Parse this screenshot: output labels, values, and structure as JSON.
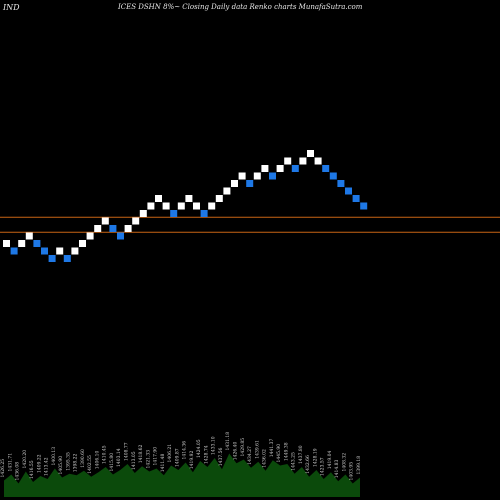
{
  "header": {
    "left": "IND",
    "center": "ICES DSHN  8%~  Closing Daily data  Renko  charts MunafaSutra.com"
  },
  "chart_data": {
    "type": "renko",
    "title": "ICES DSHN  8%~  Closing Daily data  Renko  charts MunafaSutra.com",
    "brick_size": 1,
    "reference_lines": [
      {
        "value": 20.5,
        "color": "#c86414"
      },
      {
        "value": 18.5,
        "color": "#c86414"
      }
    ],
    "bricks": [
      {
        "dir": "up",
        "level": 17
      },
      {
        "dir": "down",
        "level": 16
      },
      {
        "dir": "up",
        "level": 17
      },
      {
        "dir": "up",
        "level": 18
      },
      {
        "dir": "down",
        "level": 17
      },
      {
        "dir": "down",
        "level": 16
      },
      {
        "dir": "down",
        "level": 15
      },
      {
        "dir": "up",
        "level": 16
      },
      {
        "dir": "down",
        "level": 15
      },
      {
        "dir": "up",
        "level": 16
      },
      {
        "dir": "up",
        "level": 17
      },
      {
        "dir": "up",
        "level": 18
      },
      {
        "dir": "up",
        "level": 19
      },
      {
        "dir": "up",
        "level": 20
      },
      {
        "dir": "down",
        "level": 19
      },
      {
        "dir": "down",
        "level": 18
      },
      {
        "dir": "up",
        "level": 19
      },
      {
        "dir": "up",
        "level": 20
      },
      {
        "dir": "up",
        "level": 21
      },
      {
        "dir": "up",
        "level": 22
      },
      {
        "dir": "up",
        "level": 23
      },
      {
        "dir": "up",
        "level": 22
      },
      {
        "dir": "down",
        "level": 21
      },
      {
        "dir": "up",
        "level": 22
      },
      {
        "dir": "up",
        "level": 23
      },
      {
        "dir": "up",
        "level": 22
      },
      {
        "dir": "down",
        "level": 21
      },
      {
        "dir": "up",
        "level": 22
      },
      {
        "dir": "up",
        "level": 23
      },
      {
        "dir": "up",
        "level": 24
      },
      {
        "dir": "up",
        "level": 25
      },
      {
        "dir": "up",
        "level": 26
      },
      {
        "dir": "down",
        "level": 25
      },
      {
        "dir": "up",
        "level": 26
      },
      {
        "dir": "up",
        "level": 27
      },
      {
        "dir": "down",
        "level": 26
      },
      {
        "dir": "up",
        "level": 27
      },
      {
        "dir": "up",
        "level": 28
      },
      {
        "dir": "down",
        "level": 27
      },
      {
        "dir": "up",
        "level": 28
      },
      {
        "dir": "up",
        "level": 29
      },
      {
        "dir": "up",
        "level": 28
      },
      {
        "dir": "down",
        "level": 27
      },
      {
        "dir": "down",
        "level": 26
      },
      {
        "dir": "down",
        "level": 25
      },
      {
        "dir": "down",
        "level": 24
      },
      {
        "dir": "down",
        "level": 23
      },
      {
        "dir": "down",
        "level": 22
      }
    ],
    "volume_labels": [
      "1426.25",
      "1431.71",
      "1436.08",
      "1420.20",
      "1416.55",
      "1409.22",
      "1413.42",
      "1400.13",
      "1405.90",
      "1395.35",
      "1398.22",
      "1390.60",
      "1402.55",
      "1406.10",
      "1410.45",
      "1415.80",
      "1403.14",
      "1408.77",
      "1413.05",
      "1418.62",
      "1421.33",
      "1417.90",
      "1411.48",
      "1406.21",
      "1409.87",
      "1414.36",
      "1419.92",
      "1424.05",
      "1428.74",
      "1433.10",
      "1437.56",
      "1431.18",
      "1426.40",
      "1429.85",
      "1434.27",
      "1439.61",
      "1436.02",
      "1441.37",
      "1445.90",
      "1449.38",
      "1443.25",
      "1437.80",
      "1432.66",
      "1428.19",
      "1423.57",
      "1419.04",
      "1414.83",
      "1408.32",
      "1403.95",
      "1399.18"
    ],
    "volume_values": [
      22,
      30,
      18,
      34,
      20,
      28,
      24,
      38,
      26,
      31,
      29,
      35,
      27,
      33,
      40,
      30,
      36,
      44,
      32,
      41,
      34,
      38,
      29,
      42,
      36,
      46,
      33,
      48,
      40,
      52,
      37,
      58,
      45,
      50,
      39,
      47,
      35,
      49,
      42,
      44,
      31,
      40,
      27,
      36,
      24,
      33,
      21,
      30,
      18,
      26
    ]
  }
}
